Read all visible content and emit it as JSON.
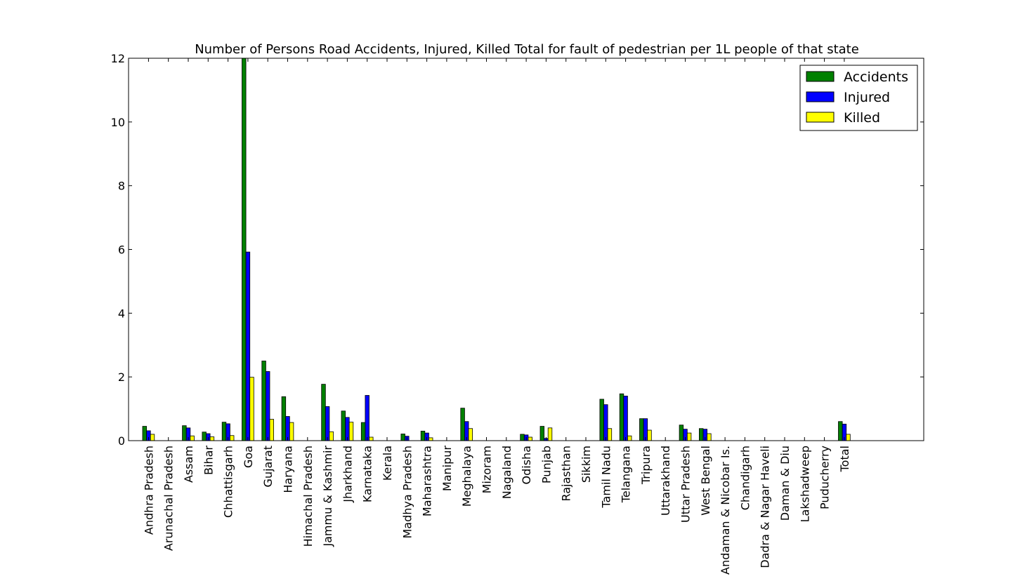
{
  "chart_data": {
    "type": "bar",
    "title": "Number of Persons Road Accidents, Injured, Killed Total for fault of pedestrian per 1L people of that state",
    "xlabel": "",
    "ylabel": "",
    "ylim": [
      0,
      12
    ],
    "yticks": [
      0,
      2,
      4,
      6,
      8,
      10,
      12
    ],
    "grid": false,
    "legend_position": "top-right",
    "categories": [
      "Andhra Pradesh",
      "Arunachal Pradesh",
      "Assam",
      "Bihar",
      "Chhattisgarh",
      "Goa",
      "Gujarat",
      "Haryana",
      "Himachal Pradesh",
      "Jammu & Kashmir",
      "Jharkhand",
      "Karnataka",
      "Kerala",
      "Madhya Pradesh",
      "Maharashtra",
      "Manipur",
      "Meghalaya",
      "Mizoram",
      "Nagaland",
      "Odisha",
      "Punjab",
      "Rajasthan",
      "Sikkim",
      "Tamil Nadu",
      "Telangana",
      "Tripura",
      "Uttarakhand",
      "Uttar Pradesh",
      "West Bengal",
      "Andaman & Nicobar Is.",
      "Chandigarh",
      "Dadra & Nagar Haveli",
      "Daman & Diu",
      "Lakshadweep",
      "Puducherry",
      "Total"
    ],
    "series": [
      {
        "name": "Accidents",
        "color": "#008000",
        "values": [
          0.45,
          0,
          0.47,
          0.27,
          0.58,
          12.0,
          2.5,
          1.38,
          0,
          1.77,
          0.93,
          0.57,
          0,
          0.21,
          0.3,
          0,
          1.02,
          0,
          0,
          0.2,
          0.45,
          0,
          0,
          1.3,
          1.47,
          0.69,
          0,
          0.49,
          0.38,
          0,
          0,
          0,
          0,
          0,
          0,
          0.6
        ]
      },
      {
        "name": "Injured",
        "color": "#0000ff",
        "values": [
          0.31,
          0,
          0.4,
          0.22,
          0.53,
          5.92,
          2.17,
          0.76,
          0,
          1.07,
          0.73,
          1.42,
          0,
          0.14,
          0.24,
          0,
          0.6,
          0,
          0,
          0.18,
          0.07,
          0,
          0,
          1.13,
          1.4,
          0.69,
          0,
          0.36,
          0.36,
          0,
          0,
          0,
          0,
          0,
          0,
          0.52
        ]
      },
      {
        "name": "Killed",
        "color": "#ffff00",
        "values": [
          0.2,
          0,
          0.15,
          0.12,
          0.16,
          1.99,
          0.67,
          0.57,
          0,
          0.28,
          0.58,
          0.11,
          0,
          0,
          0.09,
          0,
          0.38,
          0,
          0,
          0.11,
          0.4,
          0,
          0,
          0.38,
          0.15,
          0.33,
          0,
          0.24,
          0.22,
          0,
          0,
          0,
          0,
          0,
          0,
          0.2
        ]
      }
    ]
  }
}
